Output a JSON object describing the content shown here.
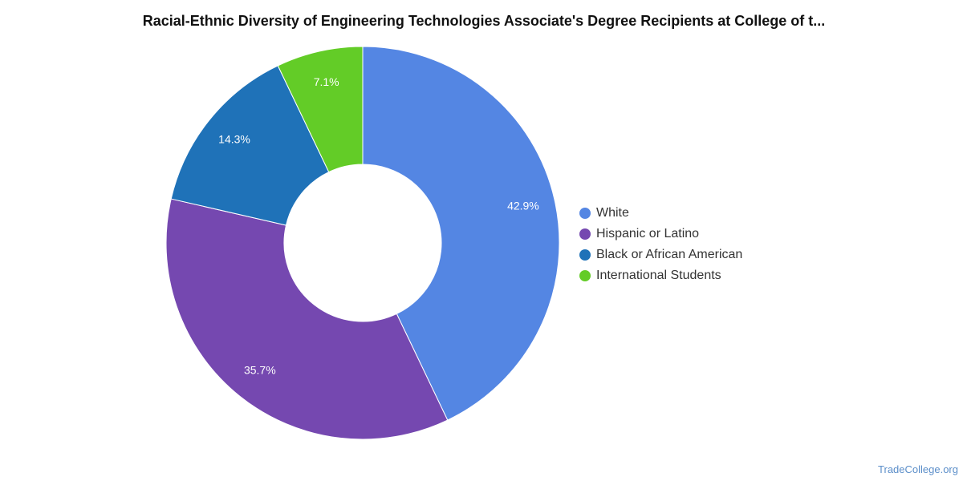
{
  "chart_data": {
    "type": "pie",
    "title": "Racial-Ethnic Diversity of Engineering Technologies Associate's Degree Recipients at College of t...",
    "categories": [
      "White",
      "Hispanic or Latino",
      "Black or African American",
      "International Students"
    ],
    "values": [
      42.9,
      35.7,
      14.3,
      7.1
    ],
    "value_labels": [
      "42.9%",
      "35.7%",
      "14.3%",
      "7.1%"
    ],
    "colors": [
      "#5486e3",
      "#7548b0",
      "#1f72b8",
      "#63cc27"
    ],
    "donut": true,
    "legend_position": "right"
  },
  "watermark": "TradeCollege.org"
}
